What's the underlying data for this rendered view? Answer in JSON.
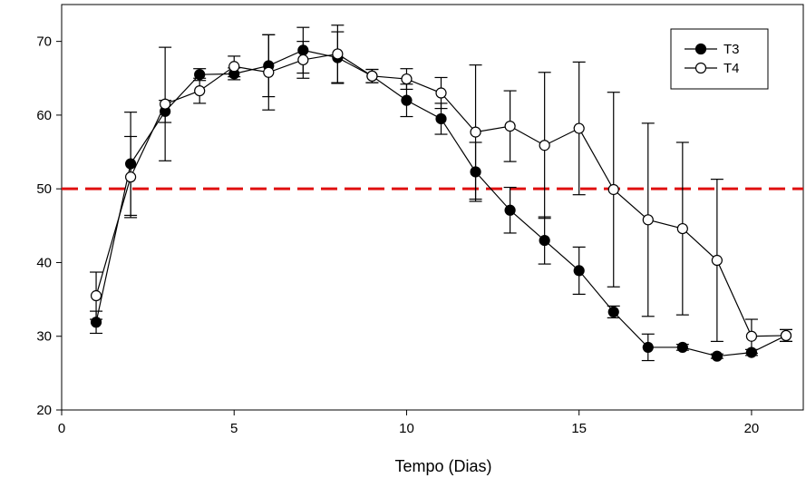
{
  "chart_data": {
    "type": "line",
    "title": "",
    "xlabel": "Tempo (Dias)",
    "ylabel": "",
    "xlim": [
      0,
      21.5
    ],
    "ylim": [
      20,
      75
    ],
    "xticks": [
      0,
      5,
      10,
      15,
      20
    ],
    "yticks": [
      20,
      30,
      40,
      50,
      60,
      70
    ],
    "grid": false,
    "legend_position": "top-right",
    "reference_line": {
      "y": 50,
      "color": "#e01010",
      "style": "dashed"
    },
    "series": [
      {
        "name": "T3",
        "marker": "filled-circle",
        "x": [
          1,
          2,
          3,
          4,
          5,
          6,
          7,
          8,
          9,
          10,
          11,
          12,
          13,
          14,
          15,
          16,
          17,
          18,
          19,
          20,
          21
        ],
        "y": [
          31.9,
          53.4,
          60.5,
          65.5,
          65.6,
          66.7,
          68.8,
          67.8,
          65.3,
          62.0,
          59.5,
          52.3,
          47.1,
          43.0,
          38.9,
          33.3,
          28.5,
          28.5,
          27.3,
          27.8,
          30.1
        ],
        "err": [
          1.5,
          7.0,
          1.5,
          0.8,
          0.8,
          4.2,
          3.1,
          3.5,
          0.9,
          2.2,
          2.1,
          4.0,
          3.1,
          3.2,
          3.2,
          0.8,
          1.8,
          0.4,
          0.3,
          0.4,
          0.8
        ]
      },
      {
        "name": "T4",
        "marker": "open-circle",
        "x": [
          1,
          2,
          3,
          4,
          5,
          6,
          7,
          8,
          9,
          10,
          11,
          12,
          13,
          14,
          15,
          16,
          17,
          18,
          19,
          20,
          21
        ],
        "y": [
          35.5,
          51.6,
          61.5,
          63.3,
          66.6,
          65.8,
          67.5,
          68.3,
          65.3,
          64.9,
          63.0,
          57.7,
          58.5,
          55.9,
          58.2,
          49.9,
          45.8,
          44.6,
          40.3,
          30.0,
          30.1
        ],
        "err": [
          3.2,
          5.5,
          7.7,
          1.7,
          1.4,
          5.1,
          2.5,
          3.9,
          0.9,
          1.4,
          2.1,
          9.1,
          4.8,
          9.9,
          9.0,
          13.2,
          13.1,
          11.7,
          11.0,
          2.3,
          0.8
        ]
      }
    ],
    "colors": {
      "line": "#000000",
      "reference": "#e01010",
      "open_marker_fill": "#ffffff"
    }
  }
}
